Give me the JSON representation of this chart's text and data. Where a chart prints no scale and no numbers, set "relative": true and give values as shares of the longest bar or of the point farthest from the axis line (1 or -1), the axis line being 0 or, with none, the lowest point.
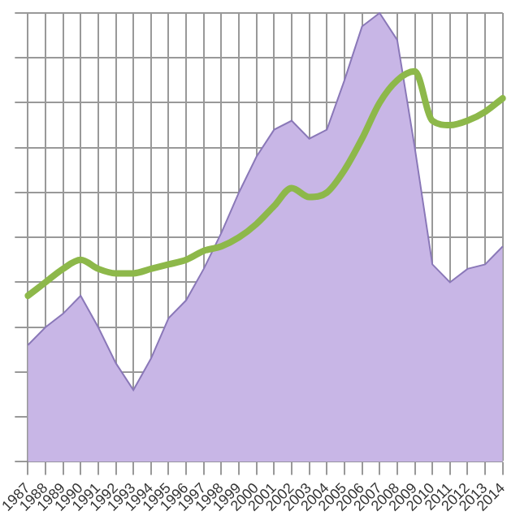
{
  "chart_data": {
    "type": "area",
    "relative": true,
    "grid": true,
    "legend": false,
    "categories": [
      "1987",
      "1988",
      "1989",
      "1990",
      "1991",
      "1992",
      "1993",
      "1994",
      "1995",
      "1996",
      "1997",
      "1998",
      "1999",
      "2000",
      "2001",
      "2002",
      "2003",
      "2004",
      "2005",
      "2006",
      "2007",
      "2008",
      "2009",
      "2010",
      "2011",
      "2012",
      "2013",
      "2014"
    ],
    "series": [
      {
        "color": "#c8b6e6",
        "values": [
          0.26,
          0.3,
          0.33,
          0.37,
          0.3,
          0.22,
          0.16,
          0.23,
          0.32,
          0.36,
          0.43,
          0.51,
          0.6,
          0.68,
          0.74,
          0.76,
          0.72,
          0.74,
          0.85,
          0.97,
          1.0,
          0.94,
          0.7,
          0.44,
          0.4,
          0.43,
          0.44,
          0.48
        ]
      },
      {
        "type": "line",
        "color": "#8db84a",
        "values": [
          0.37,
          0.4,
          0.43,
          0.45,
          0.43,
          0.42,
          0.42,
          0.43,
          0.44,
          0.45,
          0.47,
          0.48,
          0.5,
          0.53,
          0.57,
          0.61,
          0.59,
          0.6,
          0.65,
          0.72,
          0.8,
          0.85,
          0.87,
          0.76,
          0.75,
          0.76,
          0.78,
          0.81
        ]
      }
    ]
  }
}
